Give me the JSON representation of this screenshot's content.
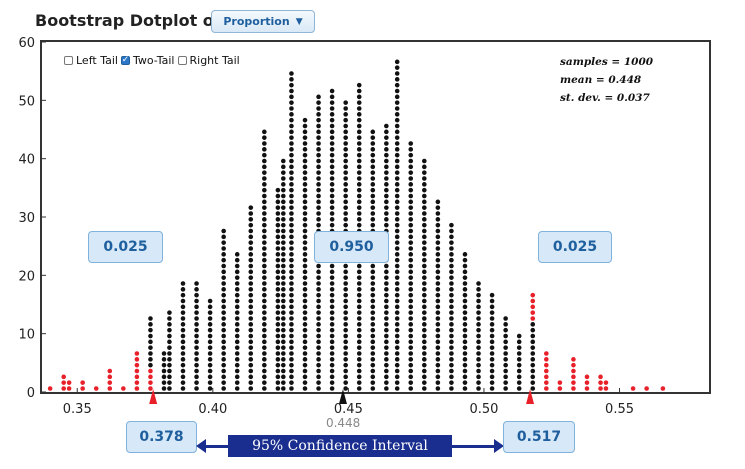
{
  "header": {
    "title": "Bootstrap Dotplot of",
    "variable_select": "Proportion"
  },
  "tail_options": [
    {
      "label": "Left Tail",
      "checked": false
    },
    {
      "label": "Two-Tail",
      "checked": true
    },
    {
      "label": "Right Tail",
      "checked": false
    }
  ],
  "stats": {
    "samples": "samples = 1000",
    "mean": "mean = 0.448",
    "sd": "st. dev. = 0.037"
  },
  "proportions": {
    "left": "0.025",
    "middle": "0.950",
    "right": "0.025"
  },
  "ci": {
    "lower": "0.378",
    "upper": "0.517",
    "label": "95% Confidence Interval",
    "lower_value": 0.378,
    "upper_value": 0.517
  },
  "mean_marker": {
    "label": "0.448",
    "value": 0.448
  },
  "colors": {
    "dot": "#111111",
    "tail_dot": "#e8202a",
    "accent": "#1a2e8f",
    "box_fill": "#d7e9f8",
    "box_text": "#1f5f9e"
  },
  "chart_data": {
    "type": "scatter",
    "title": "",
    "xlabel": "",
    "ylabel": "",
    "xlim": [
      0.337,
      0.583
    ],
    "ylim": [
      0,
      60
    ],
    "xticks": [
      0.35,
      0.4,
      0.45,
      0.5,
      0.55
    ],
    "xtick_labels": [
      "0.35",
      "0.40",
      "0.45",
      "0.50",
      "0.55"
    ],
    "yticks": [
      0,
      10,
      20,
      30,
      40,
      50,
      60
    ],
    "ytick_labels": [
      "0",
      "10",
      "20",
      "30",
      "40",
      "50",
      "60"
    ],
    "grid": false,
    "columns": [
      {
        "x": 0.34,
        "count": 1,
        "tail": true
      },
      {
        "x": 0.345,
        "count": 3,
        "tail": true
      },
      {
        "x": 0.347,
        "count": 2,
        "tail": true
      },
      {
        "x": 0.352,
        "count": 2,
        "tail": true
      },
      {
        "x": 0.357,
        "count": 1,
        "tail": true
      },
      {
        "x": 0.362,
        "count": 4,
        "tail": true
      },
      {
        "x": 0.367,
        "count": 1,
        "tail": true
      },
      {
        "x": 0.372,
        "count": 7,
        "tail": true
      },
      {
        "x": 0.377,
        "count": 4,
        "tail": true
      },
      {
        "x": 0.377,
        "count": 9,
        "tail": false,
        "stack_start": 4
      },
      {
        "x": 0.382,
        "count": 7,
        "tail": false
      },
      {
        "x": 0.384,
        "count": 14,
        "tail": false
      },
      {
        "x": 0.389,
        "count": 19,
        "tail": false
      },
      {
        "x": 0.394,
        "count": 19,
        "tail": false
      },
      {
        "x": 0.399,
        "count": 16,
        "tail": false
      },
      {
        "x": 0.404,
        "count": 28,
        "tail": false
      },
      {
        "x": 0.409,
        "count": 24,
        "tail": false
      },
      {
        "x": 0.414,
        "count": 32,
        "tail": false
      },
      {
        "x": 0.419,
        "count": 45,
        "tail": false
      },
      {
        "x": 0.424,
        "count": 35,
        "tail": false
      },
      {
        "x": 0.426,
        "count": 40,
        "tail": false
      },
      {
        "x": 0.429,
        "count": 55,
        "tail": false
      },
      {
        "x": 0.434,
        "count": 47,
        "tail": false
      },
      {
        "x": 0.439,
        "count": 51,
        "tail": false
      },
      {
        "x": 0.444,
        "count": 52,
        "tail": false
      },
      {
        "x": 0.449,
        "count": 50,
        "tail": false
      },
      {
        "x": 0.454,
        "count": 53,
        "tail": false
      },
      {
        "x": 0.459,
        "count": 45,
        "tail": false
      },
      {
        "x": 0.464,
        "count": 46,
        "tail": false
      },
      {
        "x": 0.468,
        "count": 57,
        "tail": false
      },
      {
        "x": 0.473,
        "count": 43,
        "tail": false
      },
      {
        "x": 0.478,
        "count": 40,
        "tail": false
      },
      {
        "x": 0.483,
        "count": 33,
        "tail": false
      },
      {
        "x": 0.488,
        "count": 29,
        "tail": false
      },
      {
        "x": 0.493,
        "count": 24,
        "tail": false
      },
      {
        "x": 0.498,
        "count": 19,
        "tail": false
      },
      {
        "x": 0.503,
        "count": 17,
        "tail": false
      },
      {
        "x": 0.508,
        "count": 13,
        "tail": false
      },
      {
        "x": 0.513,
        "count": 10,
        "tail": false
      },
      {
        "x": 0.518,
        "count": 12,
        "tail": false
      },
      {
        "x": 0.518,
        "count": 5,
        "tail": true,
        "stack_start": 12
      },
      {
        "x": 0.523,
        "count": 7,
        "tail": true
      },
      {
        "x": 0.528,
        "count": 2,
        "tail": true
      },
      {
        "x": 0.533,
        "count": 6,
        "tail": true
      },
      {
        "x": 0.538,
        "count": 3,
        "tail": true
      },
      {
        "x": 0.543,
        "count": 3,
        "tail": true
      },
      {
        "x": 0.545,
        "count": 2,
        "tail": true
      },
      {
        "x": 0.555,
        "count": 1,
        "tail": true
      },
      {
        "x": 0.56,
        "count": 1,
        "tail": true
      },
      {
        "x": 0.566,
        "count": 1,
        "tail": true
      }
    ]
  }
}
